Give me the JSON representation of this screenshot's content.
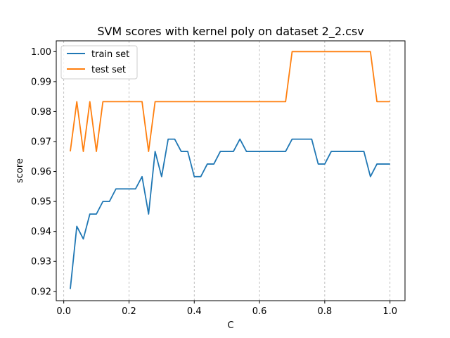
{
  "chart_data": {
    "type": "line",
    "title": "SVM scores with kernel poly on dataset 2_2.csv",
    "xlabel": "C",
    "ylabel": "score",
    "xlim": [
      -0.023,
      1.046
    ],
    "ylim": [
      0.9169,
      1.0036
    ],
    "xticks": [
      0.0,
      0.2,
      0.4,
      0.6,
      0.8,
      1.0
    ],
    "xtick_labels": [
      "0.0",
      "0.2",
      "0.4",
      "0.6",
      "0.8",
      "1.0"
    ],
    "yticks": [
      0.92,
      0.93,
      0.94,
      0.95,
      0.96,
      0.97,
      0.98,
      0.99,
      1.0
    ],
    "ytick_labels": [
      "0.92",
      "0.93",
      "0.94",
      "0.95",
      "0.96",
      "0.97",
      "0.98",
      "0.99",
      "1.00"
    ],
    "grid": "x-dashed",
    "legend_position": "upper-left",
    "x": [
      0.02,
      0.04,
      0.06,
      0.08,
      0.1,
      0.12,
      0.14,
      0.16,
      0.18,
      0.2,
      0.22,
      0.24,
      0.26,
      0.28,
      0.3,
      0.32,
      0.34,
      0.36,
      0.38,
      0.4,
      0.42,
      0.44,
      0.46,
      0.48,
      0.5,
      0.52,
      0.54,
      0.56,
      0.58,
      0.6,
      0.62,
      0.64,
      0.66,
      0.68,
      0.7,
      0.72,
      0.74,
      0.76,
      0.78,
      0.8,
      0.82,
      0.84,
      0.86,
      0.88,
      0.9,
      0.92,
      0.94,
      0.96,
      0.98,
      1.0
    ],
    "series": [
      {
        "name": "train set",
        "color": "#1f77b4",
        "values": [
          0.9208,
          0.9417,
          0.9375,
          0.9458,
          0.9458,
          0.95,
          0.95,
          0.9542,
          0.9542,
          0.9542,
          0.9542,
          0.9583,
          0.9458,
          0.9667,
          0.9583,
          0.9708,
          0.9708,
          0.9667,
          0.9667,
          0.9583,
          0.9583,
          0.9625,
          0.9625,
          0.9667,
          0.9667,
          0.9667,
          0.9708,
          0.9667,
          0.9667,
          0.9667,
          0.9667,
          0.9667,
          0.9667,
          0.9667,
          0.9708,
          0.9708,
          0.9708,
          0.9708,
          0.9625,
          0.9625,
          0.9667,
          0.9667,
          0.9667,
          0.9667,
          0.9667,
          0.9667,
          0.9583,
          0.9625,
          0.9625,
          0.9625
        ]
      },
      {
        "name": "test set",
        "color": "#ff7f0e",
        "values": [
          0.9667,
          0.9833,
          0.9667,
          0.9833,
          0.9667,
          0.9833,
          0.9833,
          0.9833,
          0.9833,
          0.9833,
          0.9833,
          0.9833,
          0.9667,
          0.9833,
          0.9833,
          0.9833,
          0.9833,
          0.9833,
          0.9833,
          0.9833,
          0.9833,
          0.9833,
          0.9833,
          0.9833,
          0.9833,
          0.9833,
          0.9833,
          0.9833,
          0.9833,
          0.9833,
          0.9833,
          0.9833,
          0.9833,
          0.9833,
          1.0,
          1.0,
          1.0,
          1.0,
          1.0,
          1.0,
          1.0,
          1.0,
          1.0,
          1.0,
          1.0,
          1.0,
          1.0,
          0.9833,
          0.9833,
          0.9833
        ]
      }
    ]
  }
}
